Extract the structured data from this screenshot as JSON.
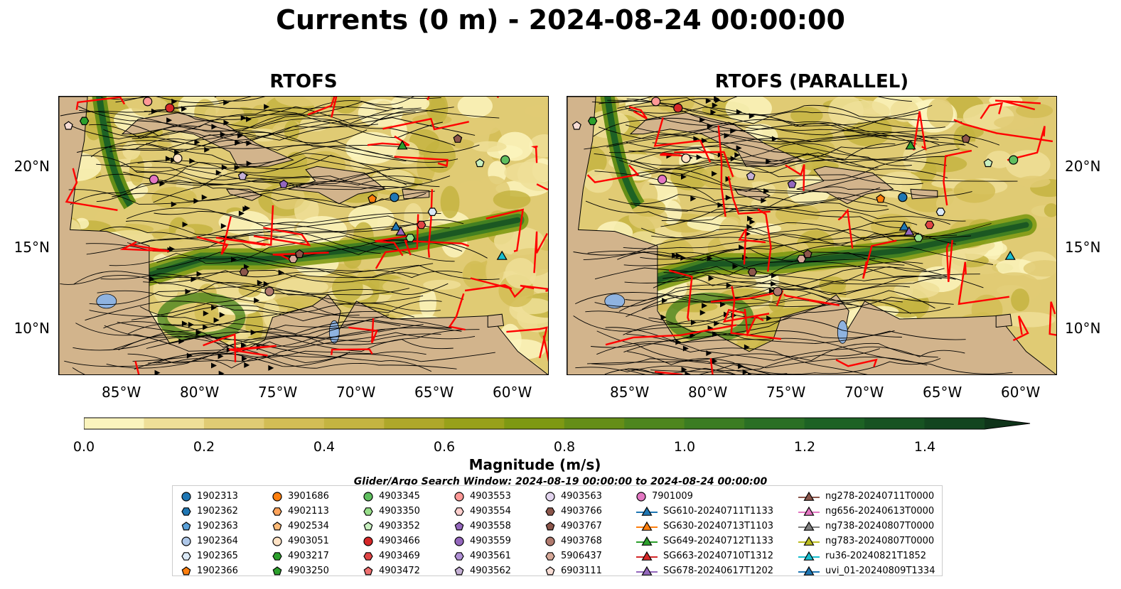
{
  "title": "Currents (0 m) - 2024-08-24 00:00:00",
  "panels": [
    {
      "title": "RTOFS"
    },
    {
      "title": "RTOFS (PARALLEL)"
    }
  ],
  "lon_ticks": [
    "85°W",
    "80°W",
    "75°W",
    "70°W",
    "65°W",
    "60°W"
  ],
  "lat_ticks": [
    "20°N",
    "15°N",
    "10°N"
  ],
  "colorbar": {
    "label": "Magnitude (m/s)",
    "ticks": [
      "0.0",
      "0.2",
      "0.4",
      "0.6",
      "0.8",
      "1.0",
      "1.2",
      "1.4"
    ],
    "min": 0.0,
    "max": 1.5,
    "step": 0.1,
    "colors": [
      "#fbf4bd",
      "#efdf98",
      "#e0cb74",
      "#d2bd55",
      "#c4b441",
      "#aea82a",
      "#98a11a",
      "#7e9913",
      "#658e17",
      "#4e861e",
      "#3b7c22",
      "#2a6f24",
      "#1d6224",
      "#175322",
      "#13451f",
      "#0f341a"
    ]
  },
  "search_window": "Glider/Argo Search Window: 2024-08-19 00:00:00 to 2024-08-24 00:00:00",
  "legend": [
    {
      "label": "1902313",
      "marker": "circle",
      "color": "#1f77b4"
    },
    {
      "label": "1902362",
      "marker": "hexagon",
      "color": "#1f77b4"
    },
    {
      "label": "1902363",
      "marker": "pentagon",
      "color": "#5aa0d8"
    },
    {
      "label": "1902364",
      "marker": "circle",
      "color": "#aec7e8"
    },
    {
      "label": "1902365",
      "marker": "hexagon",
      "color": "#dbe9f6"
    },
    {
      "label": "1902366",
      "marker": "pentagon",
      "color": "#ff7f0e"
    },
    {
      "label": "3901686",
      "marker": "circle",
      "color": "#ff7f0e"
    },
    {
      "label": "4902113",
      "marker": "hexagon",
      "color": "#ffa35a"
    },
    {
      "label": "4902534",
      "marker": "pentagon",
      "color": "#ffbb78"
    },
    {
      "label": "4903051",
      "marker": "circle",
      "color": "#ffe2c4"
    },
    {
      "label": "4903217",
      "marker": "hexagon",
      "color": "#2ca02c"
    },
    {
      "label": "4903250",
      "marker": "pentagon",
      "color": "#2ca02c"
    },
    {
      "label": "4903345",
      "marker": "circle",
      "color": "#5fbf5f"
    },
    {
      "label": "4903350",
      "marker": "hexagon",
      "color": "#98df8a"
    },
    {
      "label": "4903352",
      "marker": "pentagon",
      "color": "#c8f0c0"
    },
    {
      "label": "4903466",
      "marker": "circle",
      "color": "#d62728"
    },
    {
      "label": "4903469",
      "marker": "hexagon",
      "color": "#e04545"
    },
    {
      "label": "4903472",
      "marker": "pentagon",
      "color": "#ef7070"
    },
    {
      "label": "4903553",
      "marker": "circle",
      "color": "#ff9896"
    },
    {
      "label": "4903554",
      "marker": "hexagon",
      "color": "#ffcfcd"
    },
    {
      "label": "4903558",
      "marker": "pentagon",
      "color": "#9467bd"
    },
    {
      "label": "4903559",
      "marker": "circle",
      "color": "#9467bd"
    },
    {
      "label": "4903561",
      "marker": "hexagon",
      "color": "#b090d6"
    },
    {
      "label": "4903562",
      "marker": "pentagon",
      "color": "#c5b0d5"
    },
    {
      "label": "4903563",
      "marker": "circle",
      "color": "#e2d4ee"
    },
    {
      "label": "4903766",
      "marker": "hexagon",
      "color": "#8c564b"
    },
    {
      "label": "4903767",
      "marker": "pentagon",
      "color": "#8c564b"
    },
    {
      "label": "4903768",
      "marker": "circle",
      "color": "#b07a6e"
    },
    {
      "label": "5906437",
      "marker": "hexagon",
      "color": "#d6a898"
    },
    {
      "label": "6903111",
      "marker": "pentagon",
      "color": "#f7dcd4"
    },
    {
      "label": "7901009",
      "marker": "circle",
      "color": "#e377c2"
    },
    {
      "label": "SG610-20240711T1133",
      "marker": "triangle",
      "color": "#1f77b4"
    },
    {
      "label": "SG630-20240713T1103",
      "marker": "triangle",
      "color": "#ff7f0e"
    },
    {
      "label": "SG649-20240712T1133",
      "marker": "triangle",
      "color": "#2ca02c"
    },
    {
      "label": "SG663-20240710T1312",
      "marker": "triangle",
      "color": "#d62728"
    },
    {
      "label": "SG678-20240617T1202",
      "marker": "triangle",
      "color": "#9467bd"
    },
    {
      "label": "ng278-20240711T0000",
      "marker": "triangle",
      "color": "#8c564b"
    },
    {
      "label": "ng656-20240613T0000",
      "marker": "triangle",
      "color": "#e377c2"
    },
    {
      "label": "ng738-20240807T0000",
      "marker": "triangle",
      "color": "#7f7f7f"
    },
    {
      "label": "ng783-20240807T0000",
      "marker": "triangle",
      "color": "#bcbd22"
    },
    {
      "label": "ru36-20240821T1852",
      "marker": "triangle",
      "color": "#17becf"
    },
    {
      "label": "uvi_01-20240809T1334",
      "marker": "triangle",
      "color": "#1f77b4"
    }
  ],
  "map_colors": {
    "land": "#d2b48c",
    "lake": "#8fb3e0",
    "eez_lines": "#ff0000",
    "streamlines": "#000000"
  }
}
